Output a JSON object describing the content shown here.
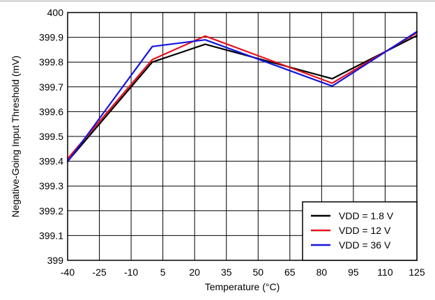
{
  "chart_data": {
    "type": "line",
    "title": "",
    "xlabel": "Temperature (°C)",
    "ylabel": "Negative-Going Input Threshold (mV)",
    "xlim": [
      -40,
      125
    ],
    "ylim": [
      399,
      400
    ],
    "x_ticks": [
      -40,
      -25,
      -10,
      5,
      20,
      35,
      50,
      65,
      80,
      95,
      110,
      125
    ],
    "y_ticks": [
      399,
      399.1,
      399.2,
      399.3,
      399.4,
      399.5,
      399.6,
      399.7,
      399.8,
      399.9,
      400
    ],
    "x_tick_labels": [
      "-40",
      "-25",
      "-10",
      "5",
      "20",
      "35",
      "50",
      "65",
      "80",
      "95",
      "110",
      "125"
    ],
    "y_tick_labels": [
      "399",
      "399.1",
      "399.2",
      "399.3",
      "399.4",
      "399.5",
      "399.6",
      "399.7",
      "399.8",
      "399.9",
      "400"
    ],
    "grid": true,
    "legend_position": "bottom-right",
    "series": [
      {
        "name": "VDD = 1.8 V",
        "color": "#000000",
        "x": [
          -40,
          0,
          25,
          85,
          125
        ],
        "y": [
          399.4,
          399.8,
          399.872,
          399.733,
          399.907
        ]
      },
      {
        "name": "VDD = 12 V",
        "color": "#e8101a",
        "x": [
          -40,
          0,
          25,
          85,
          125
        ],
        "y": [
          399.41,
          399.81,
          399.905,
          399.715,
          399.918
        ]
      },
      {
        "name": "VDD = 36 V",
        "color": "#1414e0",
        "x": [
          -40,
          0,
          25,
          85,
          125
        ],
        "y": [
          399.398,
          399.863,
          399.89,
          399.703,
          399.923
        ]
      }
    ]
  }
}
